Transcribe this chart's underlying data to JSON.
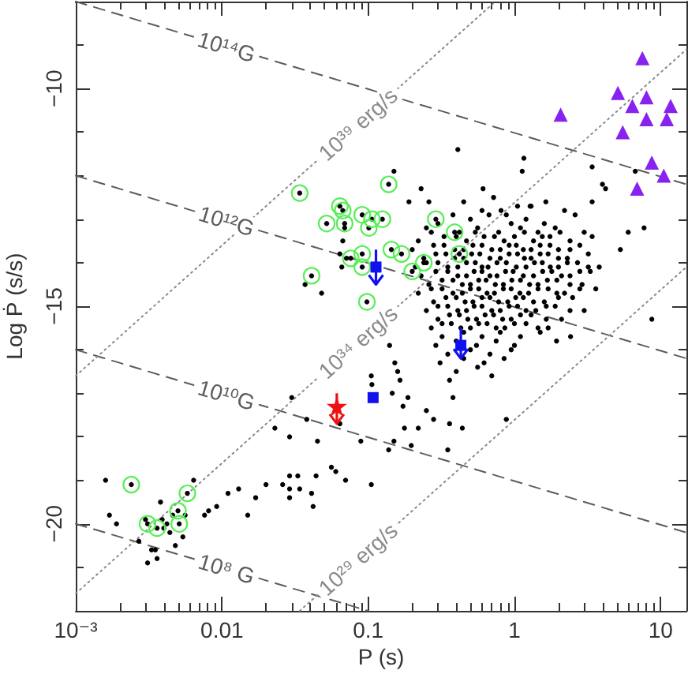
{
  "chart_data": {
    "type": "scatter",
    "xlabel": "P (s)",
    "ylabel": "Log Ṗ (s/s)",
    "log": "x",
    "xlim": [
      0.001,
      15
    ],
    "ylim": [
      -22,
      -8
    ],
    "xticks": [
      {
        "value": 0.001,
        "label": "10⁻³"
      },
      {
        "value": 0.002,
        "label": null
      },
      {
        "value": 0.003,
        "label": null
      },
      {
        "value": 0.004,
        "label": null
      },
      {
        "value": 0.005,
        "label": null
      },
      {
        "value": 0.006,
        "label": null
      },
      {
        "value": 0.007,
        "label": null
      },
      {
        "value": 0.008,
        "label": null
      },
      {
        "value": 0.009,
        "label": null
      },
      0.01,
      {
        "value": 0.02,
        "label": null
      },
      {
        "value": 0.03,
        "label": null
      },
      {
        "value": 0.04,
        "label": null
      },
      {
        "value": 0.05,
        "label": null
      },
      {
        "value": 0.06,
        "label": null
      },
      {
        "value": 0.07,
        "label": null
      },
      {
        "value": 0.08,
        "label": null
      },
      {
        "value": 0.09,
        "label": null
      },
      0.1,
      {
        "value": 0.2,
        "label": null
      },
      {
        "value": 0.3,
        "label": null
      },
      {
        "value": 0.4,
        "label": null
      },
      {
        "value": 0.5,
        "label": null
      },
      {
        "value": 0.6,
        "label": null
      },
      {
        "value": 0.7,
        "label": null
      },
      {
        "value": 0.8,
        "label": null
      },
      {
        "value": 0.9,
        "label": null
      },
      1,
      {
        "value": 2,
        "label": null
      },
      {
        "value": 3,
        "label": null
      },
      {
        "value": 4,
        "label": null
      },
      {
        "value": 5,
        "label": null
      },
      {
        "value": 6,
        "label": null
      },
      {
        "value": 7,
        "label": null
      },
      {
        "value": 8,
        "label": null
      },
      {
        "value": 9,
        "label": null
      },
      10
    ],
    "yticks": [
      {
        "value": -21,
        "label": null
      },
      {
        "value": -20,
        "label": "−20"
      },
      {
        "value": -19,
        "label": null
      },
      {
        "value": -18,
        "label": null
      },
      {
        "value": -17,
        "label": null
      },
      {
        "value": -16,
        "label": null
      },
      {
        "value": -15,
        "label": "−15"
      },
      {
        "value": -14,
        "label": null
      },
      {
        "value": -13,
        "label": null
      },
      {
        "value": -12,
        "label": null
      },
      {
        "value": -11,
        "label": null
      },
      {
        "value": -10,
        "label": "−10"
      },
      {
        "value": -9,
        "label": null
      }
    ],
    "series": [
      {
        "color": "#000000",
        "marker": "circle",
        "x": [
          0.45,
          0.72,
          1.05,
          0.38,
          0.6,
          0.88,
          1.3,
          2.2,
          0.3,
          0.5,
          0.67,
          0.95,
          1.2,
          1.6,
          2.6,
          0.25,
          0.42,
          0.56,
          0.78,
          1.1,
          1.45,
          1.9,
          3.0,
          0.22,
          0.33,
          0.47,
          0.62,
          0.85,
          1.0,
          1.35,
          1.75,
          2.4,
          3.4,
          0.2,
          0.28,
          0.39,
          0.52,
          0.7,
          0.92,
          1.15,
          1.5,
          2.0,
          2.8,
          0.24,
          0.34,
          0.45,
          0.58,
          0.8,
          1.05,
          1.3,
          1.7,
          2.3,
          3.2,
          0.21,
          0.3,
          0.41,
          0.54,
          0.66,
          0.88,
          1.2,
          1.55,
          2.0,
          2.7,
          3.8,
          0.23,
          0.35,
          0.47,
          0.6,
          0.76,
          0.98,
          1.35,
          1.8,
          2.4,
          3.3,
          0.26,
          0.38,
          0.5,
          0.64,
          0.84,
          1.1,
          1.45,
          1.95,
          2.9,
          0.22,
          0.32,
          0.44,
          0.57,
          0.73,
          0.95,
          1.25,
          1.7,
          2.2,
          3.6,
          0.28,
          0.4,
          0.52,
          0.68,
          0.9,
          1.15,
          1.6,
          2.5,
          0.25,
          0.35,
          0.47,
          0.6,
          0.8,
          1.05,
          1.4,
          1.9,
          3.0,
          0.3,
          0.42,
          0.55,
          0.72,
          0.95,
          1.3,
          2.1,
          0.27,
          0.37,
          0.5,
          0.65,
          0.86,
          1.2,
          1.7,
          0.32,
          0.45,
          0.6,
          0.8,
          1.1,
          1.5,
          0.29,
          0.4,
          0.55,
          0.75,
          1.0,
          0.35,
          0.5,
          0.68,
          0.95,
          0.31,
          0.45,
          0.62,
          0.85,
          0.4,
          0.56,
          0.36,
          0.7,
          0.27,
          0.4,
          0.54,
          0.73,
          1.17,
          1.55,
          2.05,
          0.33,
          0.45,
          0.6,
          0.8,
          1.03,
          1.3,
          1.75,
          2.4,
          0.29,
          0.39,
          0.51,
          0.68,
          0.92,
          1.17,
          1.5,
          2.0,
          0.25,
          0.35,
          0.47,
          0.6,
          0.76,
          1.03,
          1.37,
          1.76,
          2.3,
          3.2,
          0.29,
          0.41,
          0.53,
          0.68,
          0.87,
          1.15,
          1.56,
          2.1,
          2.8,
          0.32,
          0.44,
          0.57,
          0.74,
          0.96,
          1.27,
          1.68,
          2.4,
          0.27,
          0.38,
          0.5,
          0.65,
          0.84,
          1.09,
          1.45,
          1.95,
          2.8,
          0.34,
          0.46,
          0.6,
          0.78,
          1.02,
          1.35,
          2.0,
          0.3,
          0.41,
          0.53,
          0.7,
          0.92,
          1.2,
          1.65,
          2.4,
          0.36,
          0.48,
          0.63,
          0.83,
          1.1,
          1.65,
          0.32,
          0.43,
          0.57,
          0.75,
          1.0,
          1.45,
          0.41,
          1.16,
          0.15,
          1.13,
          0.61,
          0.23,
          3.4,
          4.0,
          4.2,
          6.7,
          3.4,
          1.64,
          0.19,
          0.26,
          1.28,
          6.0,
          7.7,
          5.3,
          8.7,
          0.81,
          0.069,
          0.067,
          0.064,
          0.071,
          0.066,
          0.037,
          0.048,
          0.105,
          0.106,
          0.14,
          0.152,
          0.159,
          0.165,
          0.146,
          0.173,
          0.25,
          0.28,
          0.38,
          0.187,
          0.177,
          0.22,
          0.36,
          0.44,
          0.15,
          0.138,
          0.197,
          0.35,
          0.88,
          0.089,
          0.105,
          1.94,
          2.42,
          0.0016,
          0.0017,
          0.0019,
          0.0027,
          0.003,
          0.0031,
          0.0033,
          0.0035,
          0.0036,
          0.0038,
          0.0039,
          0.004,
          0.0042,
          0.0044,
          0.0046,
          0.0048,
          0.0054,
          0.0056,
          0.0064,
          0.0076,
          0.0081,
          0.0092,
          0.011,
          0.013,
          0.015,
          0.017,
          0.02,
          0.026,
          0.029,
          0.029,
          0.029,
          0.033,
          0.034,
          0.041,
          0.042,
          0.044,
          0.056,
          0.06,
          0.07,
          0.023,
          0.029,
          0.03,
          0.038,
          0.045,
          0.064,
          0.034,
          0.064,
          0.067,
          0.052,
          0.069,
          0.091,
          0.106,
          0.125,
          0.101,
          0.138,
          0.29,
          0.39,
          0.041,
          0.076,
          0.091,
          0.091,
          0.144,
          0.169,
          0.24,
          0.2,
          0.42,
          0.098,
          0.0024,
          0.0058,
          0.005,
          0.0031,
          0.0036,
          0.0051
        ],
        "values": [
          -12.6,
          -12.5,
          -12.7,
          -12.9,
          -12.8,
          -12.9,
          -12.7,
          -12.8,
          -13.1,
          -13.0,
          -12.9,
          -13.1,
          -13.0,
          -13.1,
          -12.9,
          -13.2,
          -13.3,
          -13.2,
          -13.3,
          -13.2,
          -13.3,
          -13.2,
          -13.3,
          -13.5,
          -13.4,
          -13.5,
          -13.4,
          -13.5,
          -13.4,
          -13.5,
          -13.4,
          -13.5,
          -13.4,
          -13.7,
          -13.6,
          -13.7,
          -13.6,
          -13.7,
          -13.6,
          -13.7,
          -13.6,
          -13.7,
          -13.6,
          -13.9,
          -13.8,
          -13.9,
          -13.8,
          -13.9,
          -13.8,
          -13.9,
          -13.8,
          -13.9,
          -13.8,
          -14.1,
          -14.0,
          -14.1,
          -14.0,
          -14.1,
          -14.0,
          -14.1,
          -14.0,
          -14.1,
          -14.0,
          -14.1,
          -14.3,
          -14.2,
          -14.3,
          -14.2,
          -14.3,
          -14.2,
          -14.3,
          -14.2,
          -14.3,
          -14.2,
          -14.5,
          -14.4,
          -14.5,
          -14.4,
          -14.5,
          -14.4,
          -14.5,
          -14.4,
          -14.5,
          -14.7,
          -14.6,
          -14.7,
          -14.6,
          -14.7,
          -14.6,
          -14.7,
          -14.6,
          -14.7,
          -14.6,
          -14.9,
          -14.8,
          -14.9,
          -14.8,
          -14.9,
          -14.8,
          -14.9,
          -14.8,
          -15.1,
          -15.0,
          -15.1,
          -15.0,
          -15.1,
          -15.0,
          -15.1,
          -15.0,
          -15.1,
          -15.3,
          -15.2,
          -15.3,
          -15.2,
          -15.3,
          -15.2,
          -15.3,
          -15.5,
          -15.4,
          -15.5,
          -15.4,
          -15.5,
          -15.4,
          -15.5,
          -15.7,
          -15.6,
          -15.7,
          -15.6,
          -15.7,
          -15.6,
          -15.9,
          -15.8,
          -15.9,
          -15.8,
          -15.9,
          -16.1,
          -16.0,
          -16.1,
          -16.0,
          -16.3,
          -16.2,
          -16.3,
          -16.2,
          -16.5,
          -16.4,
          -16.7,
          -16.6,
          -13.3,
          -13.4,
          -13.3,
          -13.4,
          -13.3,
          -13.4,
          -13.3,
          -13.6,
          -13.7,
          -13.6,
          -13.7,
          -13.6,
          -13.7,
          -13.6,
          -13.7,
          -13.8,
          -13.9,
          -13.8,
          -13.9,
          -13.8,
          -13.9,
          -13.8,
          -13.9,
          -14.0,
          -14.1,
          -14.0,
          -14.1,
          -14.0,
          -14.1,
          -14.0,
          -14.1,
          -14.0,
          -14.1,
          -14.2,
          -14.3,
          -14.2,
          -14.3,
          -14.2,
          -14.3,
          -14.2,
          -14.3,
          -14.2,
          -14.4,
          -14.5,
          -14.4,
          -14.5,
          -14.4,
          -14.5,
          -14.4,
          -14.5,
          -14.6,
          -14.7,
          -14.6,
          -14.7,
          -14.6,
          -14.7,
          -14.6,
          -14.7,
          -14.6,
          -14.8,
          -14.9,
          -14.8,
          -14.9,
          -14.8,
          -14.9,
          -14.8,
          -15.0,
          -15.1,
          -15.0,
          -15.1,
          -15.0,
          -15.1,
          -15.0,
          -15.1,
          -15.2,
          -15.3,
          -15.2,
          -15.3,
          -15.2,
          -15.3,
          -15.4,
          -15.5,
          -15.4,
          -15.5,
          -15.4,
          -15.5,
          -11.4,
          -11.6,
          -11.9,
          -11.9,
          -12.3,
          -12.3,
          -11.8,
          -12.2,
          -12.3,
          -11.9,
          -12.6,
          -12.6,
          -12.6,
          -12.6,
          -12.7,
          -13.3,
          -13.2,
          -13.7,
          -15.3,
          -12.8,
          -13.2,
          -13.5,
          -13.8,
          -13.9,
          -14.1,
          -14.5,
          -14.7,
          -16.6,
          -16.8,
          -15.9,
          -16.3,
          -16.5,
          -16.7,
          -17.0,
          -17.3,
          -17.4,
          -17.6,
          -17.1,
          -17.1,
          -17.8,
          -17.8,
          -17.7,
          -17.8,
          -18.1,
          -18.3,
          -18.2,
          -18.3,
          -17.6,
          -18.1,
          -19.1,
          -15.8,
          -15.7,
          -19.0,
          -19.8,
          -20.0,
          -20.4,
          -19.9,
          -20.9,
          -20.6,
          -20.6,
          -20.8,
          -19.5,
          -19.9,
          -20.1,
          -20.0,
          -20.2,
          -19.8,
          -20.5,
          -20.3,
          -19.8,
          -19.0,
          -19.8,
          -19.7,
          -19.6,
          -19.3,
          -19.2,
          -19.8,
          -19.4,
          -19.1,
          -19.1,
          -18.9,
          -19.2,
          -19.4,
          -18.9,
          -19.2,
          -19.3,
          -19.6,
          -18.9,
          -18.7,
          -18.8,
          -19.0,
          -17.8,
          -18.0,
          -17.1,
          -17.6,
          -18.1,
          -17.7,
          -12.4,
          -12.7,
          -12.8,
          -13.1,
          -13.1,
          -12.9,
          -13.0,
          -13.0,
          -13.2,
          -12.2,
          -13.0,
          -13.3,
          -14.3,
          -13.9,
          -13.8,
          -14.1,
          -13.7,
          -13.8,
          -14.0,
          -14.2,
          -13.8,
          -14.9,
          -19.1,
          -19.3,
          -19.7,
          -20.0,
          -20.1,
          -20.0
        ]
      },
      {
        "color": "#55ee55",
        "marker": "circle",
        "x": [
          0.034,
          0.064,
          0.067,
          0.052,
          0.069,
          0.091,
          0.106,
          0.125,
          0.101,
          0.138,
          0.29,
          0.39,
          0.041,
          0.076,
          0.091,
          0.091,
          0.144,
          0.169,
          0.24,
          0.2,
          0.42,
          0.098,
          0.0024,
          0.0058,
          0.005,
          0.0031,
          0.0036,
          0.0051
        ],
        "values": [
          -12.4,
          -12.7,
          -12.8,
          -13.1,
          -13.1,
          -12.9,
          -13.0,
          -13.0,
          -13.2,
          -12.2,
          -13.0,
          -13.3,
          -14.3,
          -13.9,
          -13.8,
          -14.1,
          -13.7,
          -13.8,
          -14.0,
          -14.2,
          -13.8,
          -14.9,
          -19.1,
          -19.3,
          -19.7,
          -20.0,
          -20.1,
          -20.0
        ]
      },
      {
        "color": "#8822ee",
        "marker": "triangle",
        "x": [
          7.5,
          5.1,
          8.0,
          11.7,
          6.4,
          2.07,
          8.0,
          11.0,
          5.5,
          8.7,
          10.5,
          6.9
        ],
        "values": [
          -9.3,
          -10.1,
          -10.2,
          -10.4,
          -10.4,
          -10.6,
          -10.7,
          -10.7,
          -11.0,
          -11.7,
          -12.0,
          -12.3
        ]
      },
      {
        "color": "#1111ee",
        "marker": "square",
        "x": [
          0.113,
          0.43,
          0.108
        ],
        "values": [
          -14.1,
          -15.9,
          -17.1
        ],
        "errors": [
          [
            -14.5,
            -13.7
          ],
          [
            -16.2,
            -15.5
          ],
          null
        ]
      },
      {
        "color": "#ee1111",
        "marker": "star",
        "x": [
          0.061
        ],
        "values": [
          -17.3
        ],
        "errors": [
          [
            -17.7,
            -17.0
          ]
        ]
      },
      {
        "type": "line",
        "name": "10¹⁴G",
        "color": "#5c5c5c",
        "line_style": "dashed",
        "marker": "none",
        "x": [
          0.001,
          15
        ],
        "values": [
          -8.0,
          -12.2
        ]
      },
      {
        "type": "line",
        "name": "10¹²G",
        "color": "#5c5c5c",
        "line_style": "dashed",
        "marker": "none",
        "x": [
          0.001,
          15
        ],
        "values": [
          -12.0,
          -16.2
        ]
      },
      {
        "type": "line",
        "name": "10¹⁰G",
        "color": "#5c5c5c",
        "line_style": "dashed",
        "marker": "none",
        "x": [
          0.001,
          15
        ],
        "values": [
          -16.0,
          -20.2
        ]
      },
      {
        "type": "line",
        "name": "10⁸ G",
        "color": "#5c5c5c",
        "line_style": "dashed",
        "marker": "none",
        "x": [
          0.001,
          0.1
        ],
        "values": [
          -20.0,
          -22.0
        ]
      },
      {
        "type": "line",
        "name": "10³⁹ erg/s",
        "color": "#8a8a8a",
        "line_style": "dotted",
        "marker": "none",
        "x": [
          0.001,
          0.74
        ],
        "values": [
          -16.6,
          -8.0
        ]
      },
      {
        "type": "line",
        "name": "10³⁴ erg/s",
        "color": "#8a8a8a",
        "line_style": "dotted",
        "marker": "none",
        "x": [
          0.001,
          15
        ],
        "values": [
          -21.6,
          -9.1
        ]
      },
      {
        "type": "line",
        "name": "10²⁹ erg/s",
        "color": "#8a8a8a",
        "line_style": "dotted",
        "marker": "none",
        "x": [
          0.034,
          15
        ],
        "values": [
          -22.0,
          -14.1
        ]
      }
    ]
  }
}
